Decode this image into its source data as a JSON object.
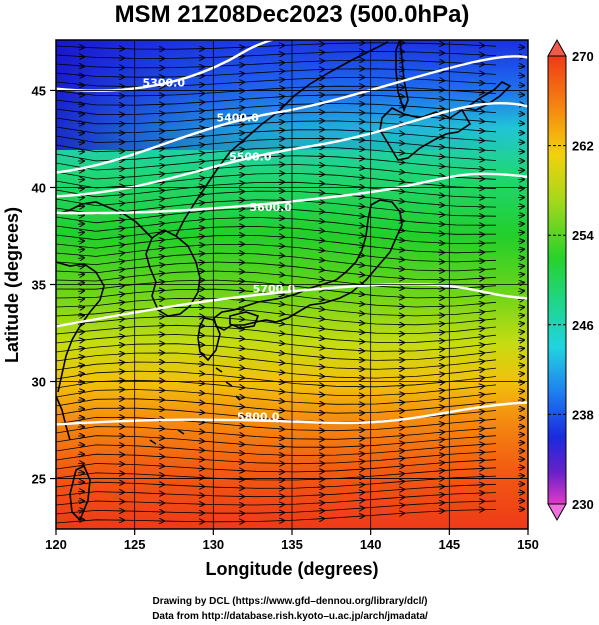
{
  "title": "MSM 21Z08Dec2023 (500.0hPa)",
  "map": {
    "x_axis_label": "Longitude (degrees)",
    "y_axis_label": "Latitude  (degrees)",
    "lon_range": [
      120,
      150
    ],
    "lat_range": [
      22.4,
      47.6
    ],
    "lon_ticks": [
      "120",
      "125",
      "130",
      "135",
      "140",
      "145",
      "150"
    ],
    "lat_ticks": [
      "25",
      "30",
      "35",
      "40",
      "45"
    ],
    "colorbar": {
      "ticks": [
        "270",
        "262",
        "254",
        "246",
        "238",
        "230"
      ],
      "range": [
        230,
        270
      ]
    },
    "contours": [
      {
        "label": "5300.0",
        "label_lon": 125.5,
        "label_lat": 45.4
      },
      {
        "label": "5400.0",
        "label_lon": 130.2,
        "label_lat": 43.6
      },
      {
        "label": "5500.0",
        "label_lon": 131.0,
        "label_lat": 41.6
      },
      {
        "label": "5600.0",
        "label_lon": 132.3,
        "label_lat": 39.0
      },
      {
        "label": "5700.0",
        "label_lon": 132.5,
        "label_lat": 34.8
      },
      {
        "label": "5800.0",
        "label_lon": 131.5,
        "label_lat": 28.2
      }
    ]
  },
  "credits": [
    "Drawing by DCL (https://www.gfd–dennou.org/library/dcl/)",
    "Data from http://database.rish.kyoto–u.ac.jp/arch/jmadata/"
  ]
}
